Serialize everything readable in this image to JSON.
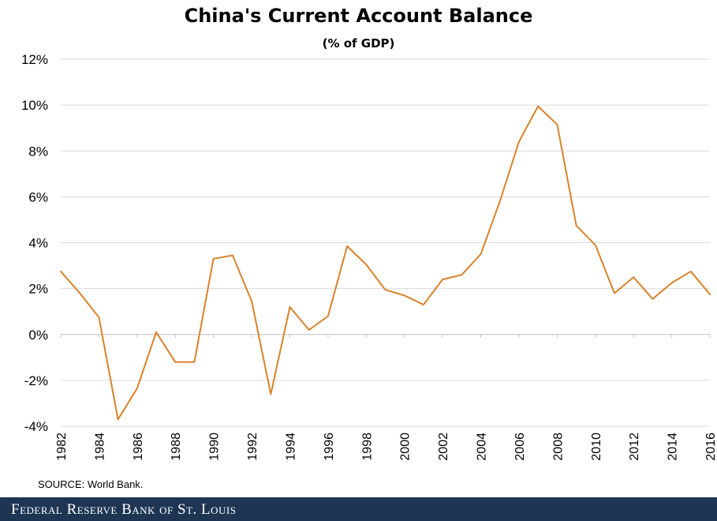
{
  "chart_data": {
    "type": "line",
    "title": "China's Current Account Balance",
    "subtitle": "(% of GDP)",
    "xlabel": "",
    "ylabel": "",
    "x": [
      1982,
      1983,
      1984,
      1985,
      1986,
      1987,
      1988,
      1989,
      1990,
      1991,
      1992,
      1993,
      1994,
      1995,
      1996,
      1997,
      1998,
      1999,
      2000,
      2001,
      2002,
      2003,
      2004,
      2005,
      2006,
      2007,
      2008,
      2009,
      2010,
      2011,
      2012,
      2013,
      2014,
      2015,
      2016
    ],
    "series": [
      {
        "values": [
          2.75,
          1.8,
          0.75,
          -3.7,
          -2.35,
          0.1,
          -1.2,
          -1.2,
          3.3,
          3.45,
          1.45,
          -2.6,
          1.2,
          0.2,
          0.8,
          3.85,
          3.05,
          1.95,
          1.7,
          1.3,
          2.4,
          2.6,
          3.5,
          5.8,
          8.4,
          9.95,
          9.15,
          4.75,
          3.9,
          1.8,
          2.5,
          1.55,
          2.25,
          2.75,
          1.75
        ],
        "color": "#d9822b"
      }
    ],
    "ylim": [
      -4,
      12
    ],
    "y_ticks": [
      -4,
      -2,
      0,
      2,
      4,
      6,
      8,
      10,
      12
    ],
    "y_tick_labels": [
      "-4%",
      "-2%",
      "0%",
      "2%",
      "4%",
      "6%",
      "8%",
      "10%",
      "12%"
    ],
    "x_ticks": [
      1982,
      1984,
      1986,
      1988,
      1990,
      1992,
      1994,
      1996,
      1998,
      2000,
      2002,
      2004,
      2006,
      2008,
      2010,
      2012,
      2014,
      2016
    ],
    "x_tick_labels": [
      "1982",
      "1984",
      "1986",
      "1988",
      "1990",
      "1992",
      "1994",
      "1996",
      "1998",
      "2000",
      "2002",
      "2004",
      "2006",
      "2008",
      "2010",
      "2012",
      "2014",
      "2016"
    ],
    "grid": true,
    "legend": false
  },
  "source": "SOURCE: World Bank.",
  "footer": {
    "brand": "Federal Reserve Bank of St. Louis",
    "background": "#1e3653"
  }
}
